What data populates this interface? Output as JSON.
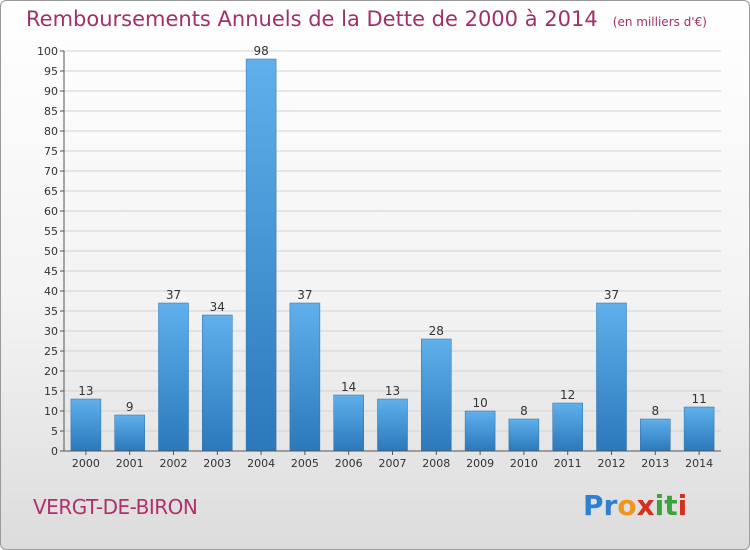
{
  "title": "Remboursements Annuels de la Dette de 2000 à 2014",
  "unit": "(en milliers d'€)",
  "commune": "VERGT-DE-BIRON",
  "logo": {
    "text": "Proxiti",
    "colors": [
      "#2f7fd1",
      "#2f7fd1",
      "#f0961f",
      "#d3301f",
      "#3aa33a",
      "#3aa33a",
      "#d3301f"
    ]
  },
  "colors": {
    "title": "#a0306a",
    "bar_top": "#5fb0ec",
    "bar_bottom": "#2b78bb",
    "grid": "#d2d2d2"
  },
  "chart_data": {
    "type": "bar",
    "title": "Remboursements Annuels de la Dette de 2000 à 2014",
    "xlabel": "",
    "ylabel": "",
    "ylim": [
      0,
      100
    ],
    "yticks": [
      0,
      5,
      10,
      15,
      20,
      25,
      30,
      35,
      40,
      45,
      50,
      55,
      60,
      65,
      70,
      75,
      80,
      85,
      90,
      95,
      100
    ],
    "grid": true,
    "categories": [
      "2000",
      "2001",
      "2002",
      "2003",
      "2004",
      "2005",
      "2006",
      "2007",
      "2008",
      "2009",
      "2010",
      "2011",
      "2012",
      "2013",
      "2014"
    ],
    "values": [
      13,
      9,
      37,
      34,
      98,
      37,
      14,
      13,
      28,
      10,
      8,
      12,
      37,
      8,
      11
    ]
  }
}
